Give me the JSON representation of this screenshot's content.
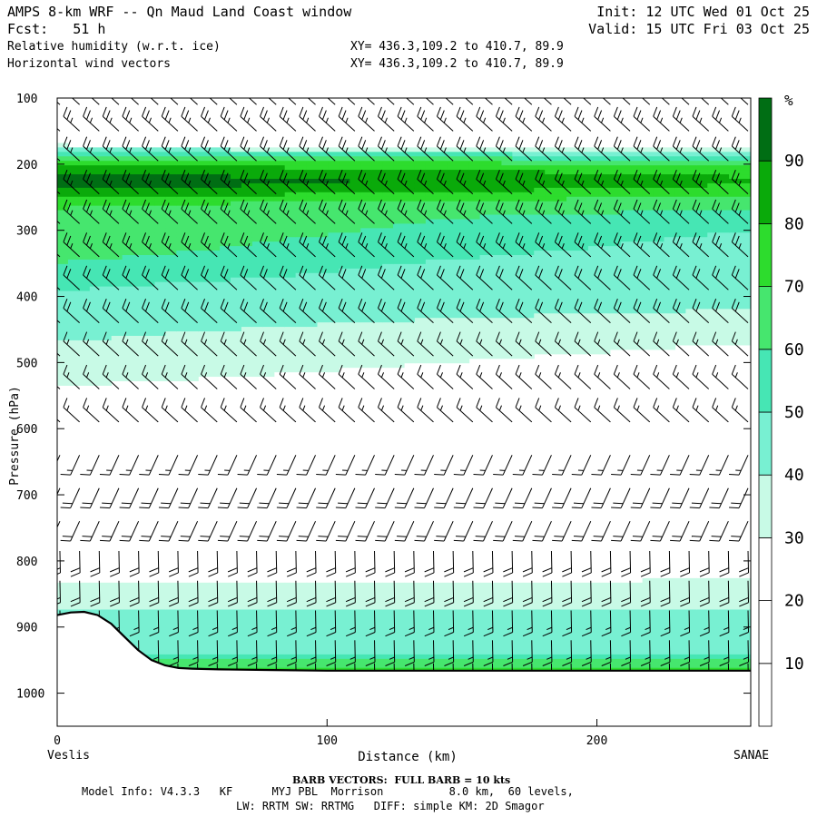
{
  "header": {
    "title": "AMPS 8-km WRF -- Qn Maud Land Coast window",
    "init": "Init: 12 UTC Wed 01 Oct 25",
    "fcst": "Fcst:   51 h",
    "valid": "Valid: 15 UTC Fri 03 Oct 25",
    "field1": "Relative humidity (w.r.t. ice)",
    "xy1": "XY= 436.3,109.2 to 410.7, 89.9",
    "field2": "Horizontal wind vectors",
    "xy2": "XY= 436.3,109.2 to 410.7, 89.9"
  },
  "footer": {
    "left_end": "Veslis",
    "right_end": "SANAE",
    "barb_note": "BARB VECTORS:  FULL BARB = 10 kts",
    "model_info": "Model Info: V4.3.3   KF      MYJ PBL  Morrison          8.0 km,  60 levels,",
    "model_info2": "LW: RRTM SW: RRTMG   DIFF: simple KM: 2D Smagor"
  },
  "colors": {
    "bins": [
      "#ffffff",
      "#ffffff",
      "#ffffff",
      "#c8fae6",
      "#78f0d2",
      "#46e6b4",
      "#46e66e",
      "#2ddc2d",
      "#0aaa0a",
      "#006e14"
    ]
  },
  "chart_data": {
    "type": "heatmap",
    "title": "Relative humidity (w.r.t. ice)",
    "xlabel": "Distance (km)",
    "ylabel": "Pressure (hPa)",
    "xlim": [
      0,
      257
    ],
    "ylim": [
      1050,
      100
    ],
    "x_ticks": [
      0,
      100,
      200
    ],
    "y_ticks": [
      100,
      200,
      300,
      400,
      500,
      600,
      700,
      800,
      900,
      1000
    ],
    "colorbar": {
      "unit": "%",
      "levels": [
        10,
        20,
        30,
        40,
        50,
        60,
        70,
        80,
        90
      ]
    },
    "terrain": {
      "distance_km": [
        0,
        5,
        10,
        15,
        20,
        25,
        30,
        35,
        40,
        45,
        50,
        60,
        80,
        100,
        150,
        200,
        257
      ],
      "pressure_hpa": [
        882,
        878,
        877,
        882,
        895,
        915,
        935,
        950,
        958,
        962,
        963,
        964,
        965,
        966,
        966,
        966,
        966
      ]
    },
    "rh_profile": {
      "pressure_hpa": [
        100,
        150,
        170,
        185,
        200,
        215,
        225,
        235,
        245,
        260,
        280,
        300,
        330,
        350,
        380,
        420,
        470,
        520,
        560,
        620,
        700,
        780,
        820,
        860,
        900,
        940,
        960
      ],
      "rh_percent_west": [
        5,
        5,
        28,
        55,
        80,
        92,
        96,
        93,
        85,
        72,
        66,
        68,
        64,
        60,
        52,
        45,
        40,
        33,
        25,
        12,
        10,
        12,
        25,
        38,
        45,
        48,
        70
      ],
      "rh_percent_east": [
        5,
        5,
        15,
        48,
        68,
        78,
        82,
        78,
        72,
        62,
        56,
        50,
        45,
        40,
        40,
        40,
        30,
        22,
        15,
        10,
        10,
        12,
        28,
        38,
        45,
        50,
        70
      ]
    },
    "wind_barbs": {
      "note": "BARB VECTORS:  FULL BARB = 10 kts",
      "levels_hpa": [
        110,
        150,
        195,
        245,
        290,
        340,
        390,
        440,
        490,
        540,
        590,
        640,
        690,
        740,
        785,
        830,
        875,
        920,
        955
      ],
      "speed_kts": [
        25,
        25,
        25,
        25,
        25,
        25,
        20,
        20,
        15,
        15,
        15,
        15,
        20,
        20,
        20,
        20,
        15,
        15,
        10
      ]
    }
  }
}
